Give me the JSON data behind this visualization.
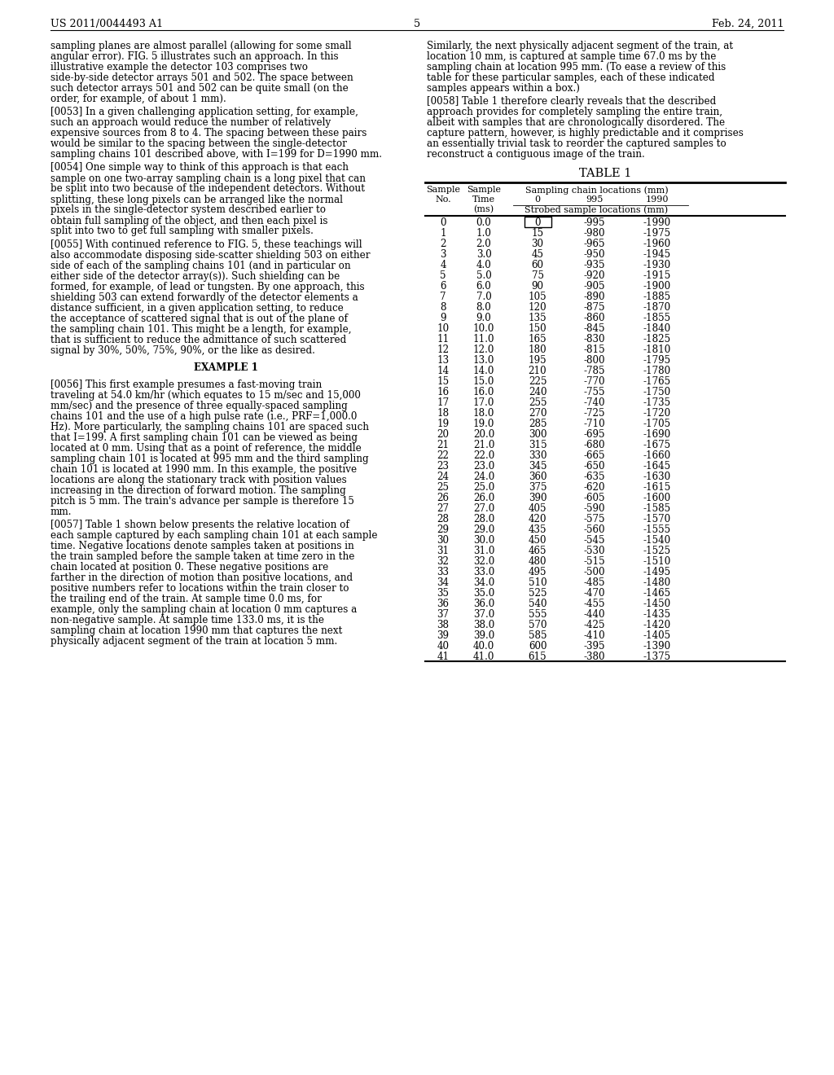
{
  "header_left": "US 2011/0044493 A1",
  "header_right": "Feb. 24, 2011",
  "page_number": "5",
  "bg_color": "#ffffff",
  "left_col_paragraphs": [
    {
      "type": "body",
      "text": "sampling planes are almost parallel (allowing for some small angular error). FIG. \u00035\u0003 illustrates such an approach. In this illustrative example the detector \u0003103\u0003 comprises two side-by-side detector arrays \u0003501\u0003 and \u0003502>. The space between such detector arrays \u0003501\u0003 and \u0003502\u0003 can be quite small (on the order, for example, of about 1 mm)."
    },
    {
      "type": "tagged",
      "tag": "[0053]",
      "text": " In a given challenging application setting, for example, such an approach would reduce the number of relatively expensive sources from 8 to 4. The spacing between these pairs would be similar to the spacing between the single-detector sampling chains \u0003101\u0003 described above, with I=199 for D=1990 mm."
    },
    {
      "type": "tagged",
      "tag": "[0054]",
      "text": " One simple way to think of this approach is that each sample on one two-array sampling chain is a long pixel that can be split into two because of the independent detectors. Without splitting, these long pixels can be arranged like the normal pixels in the single-detector system described earlier to obtain full sampling of the object, and then each pixel is split into two to get full sampling with smaller pixels."
    },
    {
      "type": "tagged",
      "tag": "[0055]",
      "text": " With continued reference to FIG. \u00035>, these teachings will also accommodate disposing side-scatter shielding \u0003503\u0003 on either side of each of the sampling chains \u0003101\u0003 (and in particular on either side of the detector array(s)). Such shielding can be formed, for example, of lead or tungsten. By one approach, this shielding \u0003503\u0003 can extend forwardly of the detector elements a distance sufficient, in a given application setting, to reduce the acceptance of scattered signal that is out of the plane of the sampling chain \u0003101>. This might be a length, for example, that is sufficient to reduce the admittance of such scattered signal by 30%, 50%, 75%, 90%, or the like as desired."
    },
    {
      "type": "center_bold",
      "text": "EXAMPLE 1"
    },
    {
      "type": "tagged",
      "tag": "[0056]",
      "text": " This first example presumes a fast-moving train traveling at 54.0 km/hr (which equates to 15 m/sec and 15,000 mm/sec) and the presence of three equally-spaced sampling chains \u0003101\u0003 and the use of a high pulse rate (i.e., PRF=1,000.0 Hz). More particularly, the sampling chains \u0003101\u0003 are spaced such that I=199. A first sampling chain \u0003101\u0003 can be viewed as being located at 0 mm. Using that as a point of reference, the middle sampling chain \u0003101\u0003 is located at 995 mm and the third sampling chain \u0003101\u0003 is located at 1990 mm. In this example, the positive locations are along the stationary track with position values increasing in the direction of forward motion. The sampling pitch is 5 mm. The train's advance per sample is therefore 15 mm."
    },
    {
      "type": "tagged",
      "tag": "[0057]",
      "text": " Table 1 shown below presents the relative location of each sample captured by each sampling chain \u0003101\u0003 at each sample time. Negative locations denote samples taken at positions in the train sampled before the sample taken at time zero in the chain located at position 0. These negative positions are farther in the direction of motion than positive locations, and positive numbers refer to locations within the train closer to the trailing end of the train. At sample time 0.0 ms, for example, only the sampling chain at location 0 mm captures a non-negative sample. At sample time 133.0 ms, it is the sampling chain at location 1990 mm that captures the next physically adjacent segment of the train at location 5 mm."
    }
  ],
  "right_col_paragraphs": [
    {
      "type": "body",
      "text": "Similarly, the next physically adjacent segment of the train, at location 10 mm, is captured at sample time 67.0 ms by the sampling chain at location 995 mm. (To ease a review of this table for these particular samples, each of these indicated samples appears within a box.)"
    },
    {
      "type": "tagged",
      "tag": "[0058]",
      "text": " Table 1 therefore clearly reveals that the described approach provides for completely sampling the entire train, albeit with samples that are chronologically disordered. The capture pattern, however, is highly predictable and it comprises an essentially trivial task to reorder the captured samples to reconstruct a contiguous image of the train."
    }
  ],
  "table_data": [
    [
      0,
      "0.0",
      0,
      -995,
      -1990
    ],
    [
      1,
      "1.0",
      15,
      -980,
      -1975
    ],
    [
      2,
      "2.0",
      30,
      -965,
      -1960
    ],
    [
      3,
      "3.0",
      45,
      -950,
      -1945
    ],
    [
      4,
      "4.0",
      60,
      -935,
      -1930
    ],
    [
      5,
      "5.0",
      75,
      -920,
      -1915
    ],
    [
      6,
      "6.0",
      90,
      -905,
      -1900
    ],
    [
      7,
      "7.0",
      105,
      -890,
      -1885
    ],
    [
      8,
      "8.0",
      120,
      -875,
      -1870
    ],
    [
      9,
      "9.0",
      135,
      -860,
      -1855
    ],
    [
      10,
      "10.0",
      150,
      -845,
      -1840
    ],
    [
      11,
      "11.0",
      165,
      -830,
      -1825
    ],
    [
      12,
      "12.0",
      180,
      -815,
      -1810
    ],
    [
      13,
      "13.0",
      195,
      -800,
      -1795
    ],
    [
      14,
      "14.0",
      210,
      -785,
      -1780
    ],
    [
      15,
      "15.0",
      225,
      -770,
      -1765
    ],
    [
      16,
      "16.0",
      240,
      -755,
      -1750
    ],
    [
      17,
      "17.0",
      255,
      -740,
      -1735
    ],
    [
      18,
      "18.0",
      270,
      -725,
      -1720
    ],
    [
      19,
      "19.0",
      285,
      -710,
      -1705
    ],
    [
      20,
      "20.0",
      300,
      -695,
      -1690
    ],
    [
      21,
      "21.0",
      315,
      -680,
      -1675
    ],
    [
      22,
      "22.0",
      330,
      -665,
      -1660
    ],
    [
      23,
      "23.0",
      345,
      -650,
      -1645
    ],
    [
      24,
      "24.0",
      360,
      -635,
      -1630
    ],
    [
      25,
      "25.0",
      375,
      -620,
      -1615
    ],
    [
      26,
      "26.0",
      390,
      -605,
      -1600
    ],
    [
      27,
      "27.0",
      405,
      -590,
      -1585
    ],
    [
      28,
      "28.0",
      420,
      -575,
      -1570
    ],
    [
      29,
      "29.0",
      435,
      -560,
      -1555
    ],
    [
      30,
      "30.0",
      450,
      -545,
      -1540
    ],
    [
      31,
      "31.0",
      465,
      -530,
      -1525
    ],
    [
      32,
      "32.0",
      480,
      -515,
      -1510
    ],
    [
      33,
      "33.0",
      495,
      -500,
      -1495
    ],
    [
      34,
      "34.0",
      510,
      -485,
      -1480
    ],
    [
      35,
      "35.0",
      525,
      -470,
      -1465
    ],
    [
      36,
      "36.0",
      540,
      -455,
      -1450
    ],
    [
      37,
      "37.0",
      555,
      -440,
      -1435
    ],
    [
      38,
      "38.0",
      570,
      -425,
      -1420
    ],
    [
      39,
      "39.0",
      585,
      -410,
      -1405
    ],
    [
      40,
      "40.0",
      600,
      -395,
      -1390
    ],
    [
      41,
      "41.0",
      615,
      -380,
      -1375
    ]
  ]
}
